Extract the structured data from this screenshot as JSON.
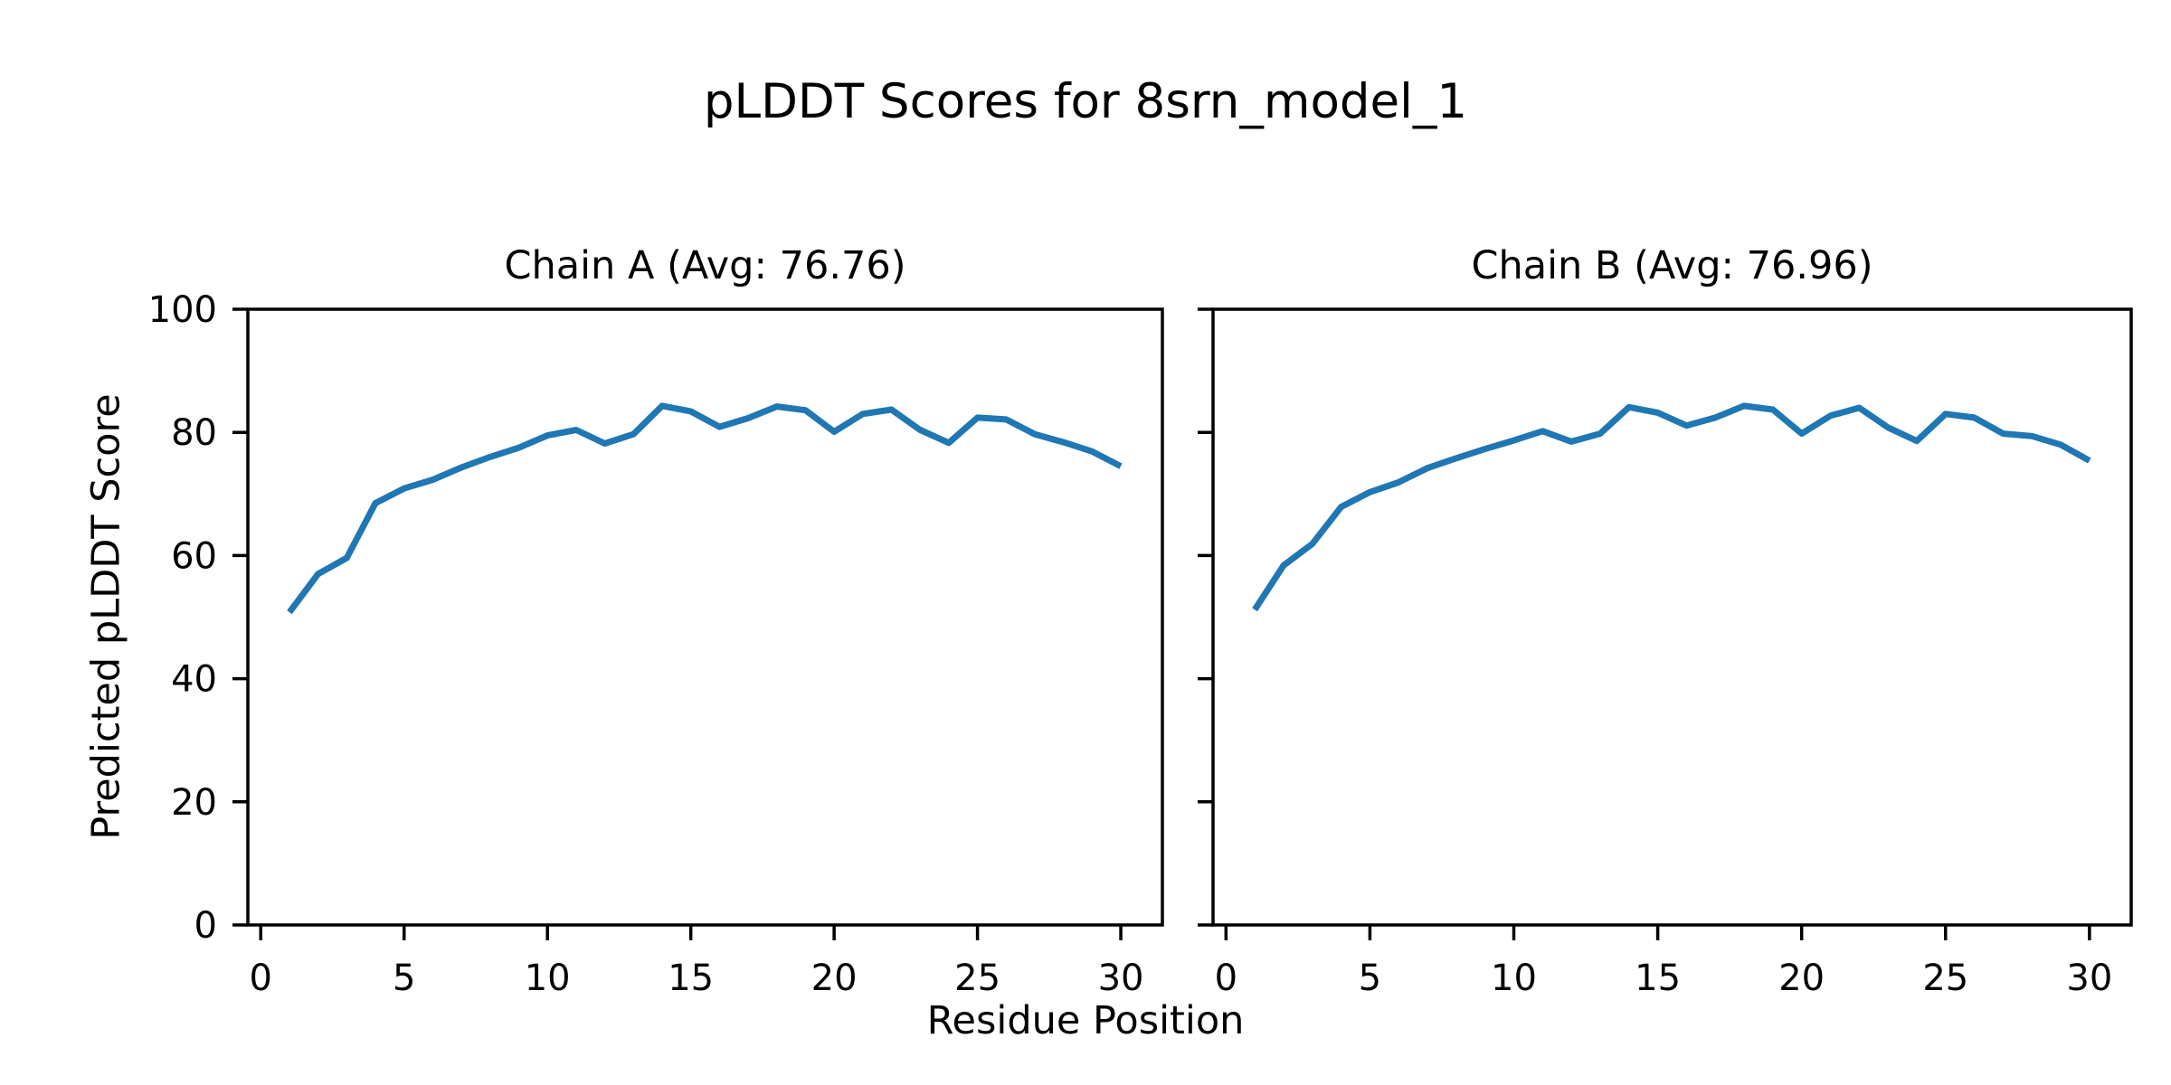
{
  "figure": {
    "suptitle": "pLDDT Scores for 8srn_model_1",
    "xlabel": "Residue Position",
    "ylabel": "Predicted pLDDT Score",
    "background_color": "#ffffff",
    "text_color": "#000000",
    "spine_color": "#000000"
  },
  "chart_data": [
    {
      "type": "line",
      "title": "Chain A (Avg: 76.76)",
      "chain": "A",
      "avg": 76.76,
      "x": [
        1,
        2,
        3,
        4,
        5,
        6,
        7,
        8,
        9,
        10,
        11,
        12,
        13,
        14,
        15,
        16,
        17,
        18,
        19,
        20,
        21,
        22,
        23,
        24,
        25,
        26,
        27,
        28,
        29,
        30
      ],
      "values": [
        50.8,
        57.0,
        59.6,
        68.5,
        70.9,
        72.3,
        74.3,
        76.0,
        77.5,
        79.5,
        80.4,
        78.2,
        79.7,
        84.3,
        83.4,
        80.9,
        82.3,
        84.2,
        83.6,
        80.1,
        83.0,
        83.7,
        80.4,
        78.3,
        82.4,
        82.1,
        79.7,
        78.4,
        76.9,
        74.5
      ],
      "xlim": [
        -0.45,
        31.45
      ],
      "ylim": [
        0,
        100
      ],
      "xticks": [
        0,
        5,
        10,
        15,
        20,
        25,
        30
      ],
      "yticks": [
        0,
        20,
        40,
        60,
        80,
        100
      ],
      "y_tick_labels_visible": true,
      "line_color": "#1f77b4",
      "grid": false,
      "legend": "none"
    },
    {
      "type": "line",
      "title": "Chain B (Avg: 76.96)",
      "chain": "B",
      "avg": 76.96,
      "x": [
        1,
        2,
        3,
        4,
        5,
        6,
        7,
        8,
        9,
        10,
        11,
        12,
        13,
        14,
        15,
        16,
        17,
        18,
        19,
        20,
        21,
        22,
        23,
        24,
        25,
        26,
        27,
        28,
        29,
        30
      ],
      "values": [
        51.2,
        58.4,
        61.9,
        67.9,
        70.3,
        71.9,
        74.2,
        75.8,
        77.3,
        78.7,
        80.2,
        78.5,
        79.8,
        84.1,
        83.2,
        81.1,
        82.4,
        84.3,
        83.7,
        79.8,
        82.7,
        84.0,
        80.8,
        78.6,
        83.0,
        82.4,
        79.8,
        79.4,
        78.0,
        75.4
      ],
      "xlim": [
        -0.45,
        31.45
      ],
      "ylim": [
        0,
        100
      ],
      "xticks": [
        0,
        5,
        10,
        15,
        20,
        25,
        30
      ],
      "yticks": [
        0,
        20,
        40,
        60,
        80,
        100
      ],
      "y_tick_labels_visible": false,
      "line_color": "#1f77b4",
      "grid": false,
      "legend": "none"
    }
  ]
}
